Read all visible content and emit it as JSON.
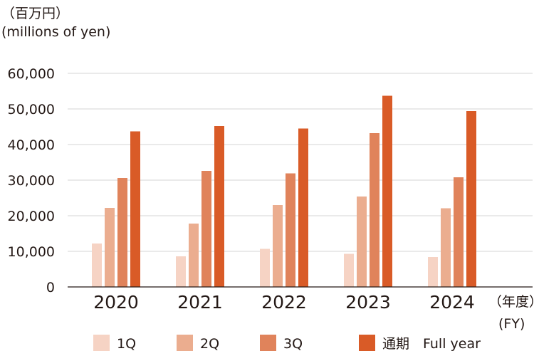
{
  "unit_label": {
    "ja": "（百万円）",
    "en": "(millions of yen)"
  },
  "fy_label": {
    "ja": "（年度）",
    "en": "(FY)"
  },
  "colors": {
    "1Q": "#f6d3c4",
    "2Q": "#ebad8f",
    "3Q": "#e0835b",
    "full": "#d95b27",
    "grid": "#d4d4d4",
    "axis": "#231815"
  },
  "chart_data": {
    "type": "bar",
    "categories": [
      "2020",
      "2021",
      "2022",
      "2023",
      "2024"
    ],
    "series": [
      {
        "name": "1Q",
        "values": [
          12200,
          8600,
          10700,
          9300,
          8400
        ]
      },
      {
        "name": "2Q",
        "values": [
          22200,
          17800,
          23000,
          25400,
          22100
        ]
      },
      {
        "name": "3Q",
        "values": [
          30600,
          32600,
          31900,
          43200,
          30800
        ]
      },
      {
        "name": "通期　Full year",
        "values": [
          43700,
          45200,
          44500,
          53700,
          49400
        ]
      }
    ],
    "ylim": [
      0,
      60000
    ],
    "yticks": [
      "0",
      "10,000",
      "20,000",
      "30,000",
      "40,000",
      "50,000",
      "60,000"
    ],
    "grid": true,
    "legend_position": "bottom"
  }
}
